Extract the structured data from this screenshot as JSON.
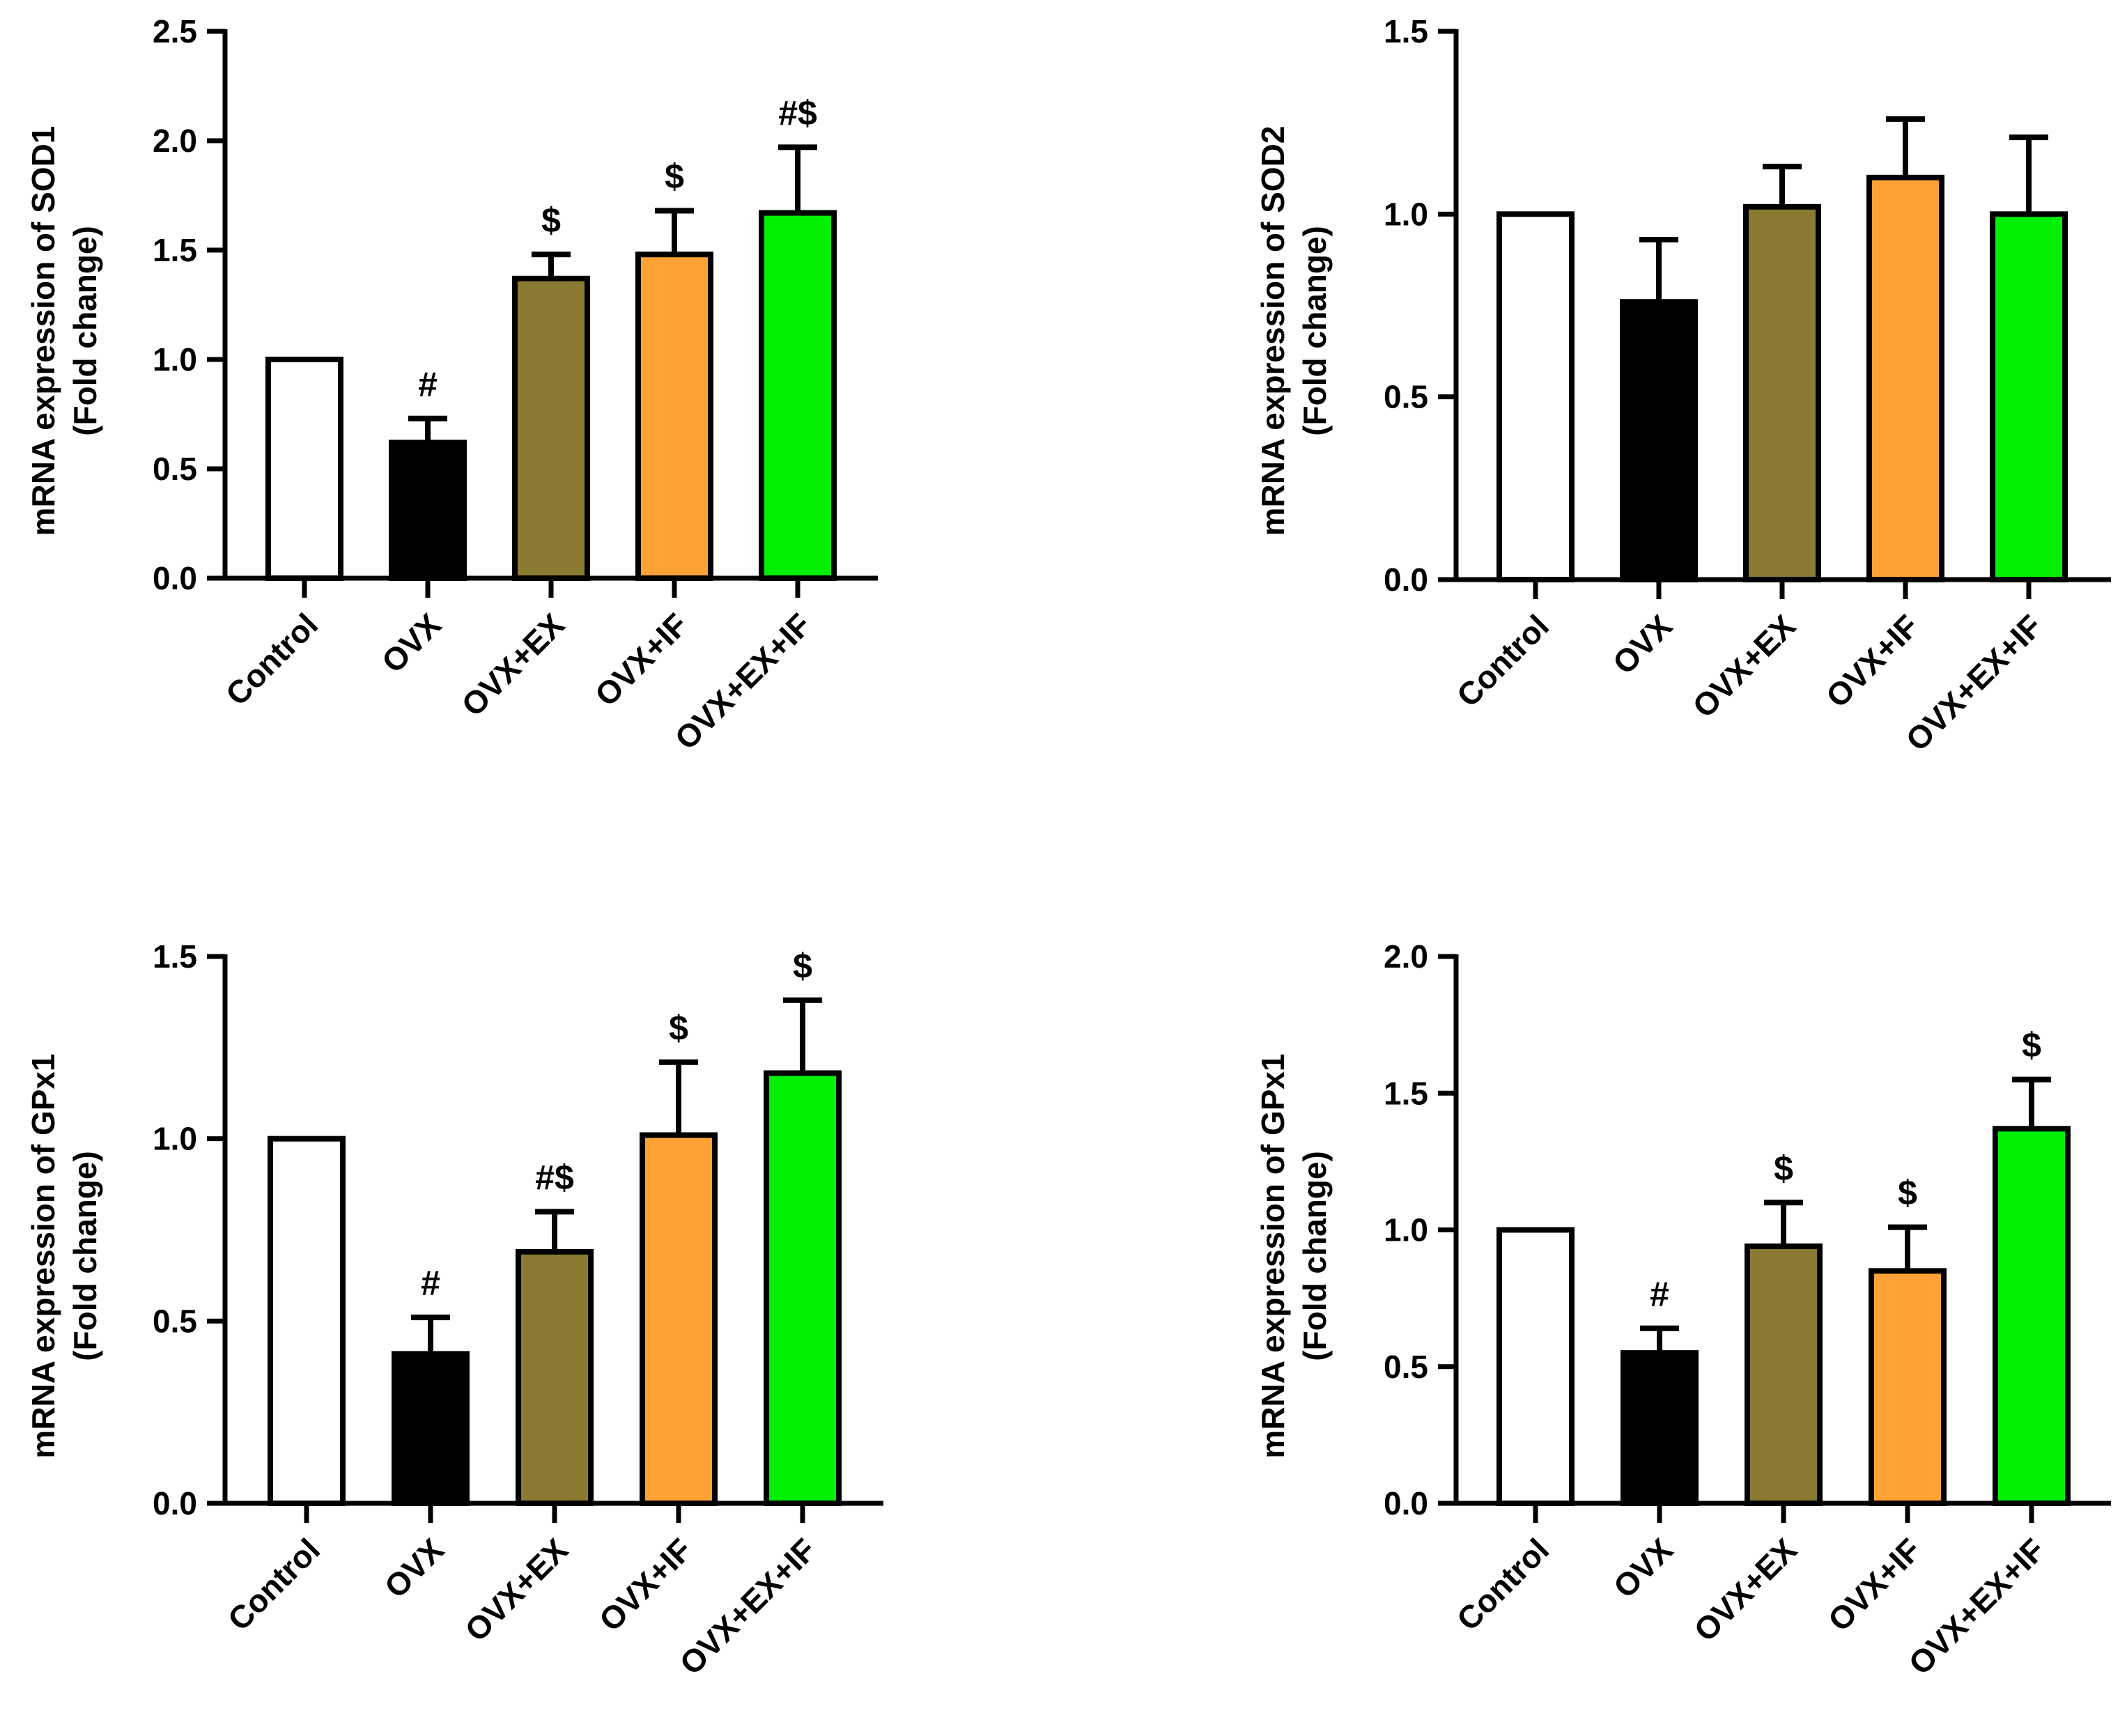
{
  "chart_data": [
    {
      "type": "bar",
      "title": "",
      "xlabel": "",
      "ylabel_line1": "mRNA expression of SOD1",
      "ylabel_line2": "(Fold change)",
      "ylim": [
        0,
        2.5
      ],
      "yticks": [
        "0.0",
        "0.5",
        "1.0",
        "1.5",
        "2.0",
        "2.5"
      ],
      "ytick_values": [
        0,
        0.5,
        1.0,
        1.5,
        2.0,
        2.5
      ],
      "categories": [
        "Control",
        "OVX",
        "OVX+EX",
        "OVX+IF",
        "OVX+EX+IF"
      ],
      "values": [
        1.0,
        0.62,
        1.37,
        1.48,
        1.67
      ],
      "errors": [
        0,
        0.11,
        0.11,
        0.2,
        0.3
      ],
      "annotations": [
        "",
        "#",
        "$",
        "$",
        "#$"
      ],
      "colors": [
        "#ffffff",
        "#000000",
        "#8a7a32",
        "#ffa235",
        "#00f000"
      ]
    },
    {
      "type": "bar",
      "title": "",
      "xlabel": "",
      "ylabel_line1": "mRNA expression of SOD2",
      "ylabel_line2": "(Fold change)",
      "ylim": [
        0,
        1.5
      ],
      "yticks": [
        "0.0",
        "0.5",
        "1.0",
        "1.5"
      ],
      "ytick_values": [
        0,
        0.5,
        1.0,
        1.5
      ],
      "categories": [
        "Control",
        "OVX",
        "OVX+EX",
        "OVX+IF",
        "OVX+EX+IF"
      ],
      "values": [
        1.0,
        0.76,
        1.02,
        1.1,
        1.0
      ],
      "errors": [
        0,
        0.17,
        0.11,
        0.16,
        0.21
      ],
      "annotations": [
        "",
        "",
        "",
        "",
        ""
      ],
      "colors": [
        "#ffffff",
        "#000000",
        "#8a7a32",
        "#ffa235",
        "#00f000"
      ]
    },
    {
      "type": "bar",
      "title": "",
      "xlabel": "",
      "ylabel_line1": "mRNA expression of GPx1",
      "ylabel_line2": "(Fold change)",
      "ylim": [
        0,
        1.5
      ],
      "yticks": [
        "0.0",
        "0.5",
        "1.0",
        "1.5"
      ],
      "ytick_values": [
        0,
        0.5,
        1.0,
        1.5
      ],
      "categories": [
        "Control",
        "OVX",
        "OVX+EX",
        "OVX+IF",
        "OVX+EX+IF"
      ],
      "values": [
        1.0,
        0.41,
        0.69,
        1.01,
        1.18
      ],
      "errors": [
        0,
        0.1,
        0.11,
        0.2,
        0.2
      ],
      "annotations": [
        "",
        "#",
        "#$",
        "$",
        "$"
      ],
      "colors": [
        "#ffffff",
        "#000000",
        "#8a7a32",
        "#ffa235",
        "#00f000"
      ]
    },
    {
      "type": "bar",
      "title": "",
      "xlabel": "",
      "ylabel_line1": "mRNA expression of GPx1",
      "ylabel_line2": "(Fold change)",
      "ylim": [
        0,
        2.0
      ],
      "yticks": [
        "0.0",
        "0.5",
        "1.0",
        "1.5",
        "2.0"
      ],
      "ytick_values": [
        0,
        0.5,
        1.0,
        1.5,
        2.0
      ],
      "categories": [
        "Control",
        "OVX",
        "OVX+EX",
        "OVX+IF",
        "OVX+EX+IF"
      ],
      "values": [
        1.0,
        0.55,
        0.94,
        0.85,
        1.37
      ],
      "errors": [
        0,
        0.09,
        0.16,
        0.16,
        0.18
      ],
      "annotations": [
        "",
        "#",
        "$",
        "$",
        "$"
      ],
      "colors": [
        "#ffffff",
        "#000000",
        "#8a7a32",
        "#ffa235",
        "#00f000"
      ]
    }
  ]
}
